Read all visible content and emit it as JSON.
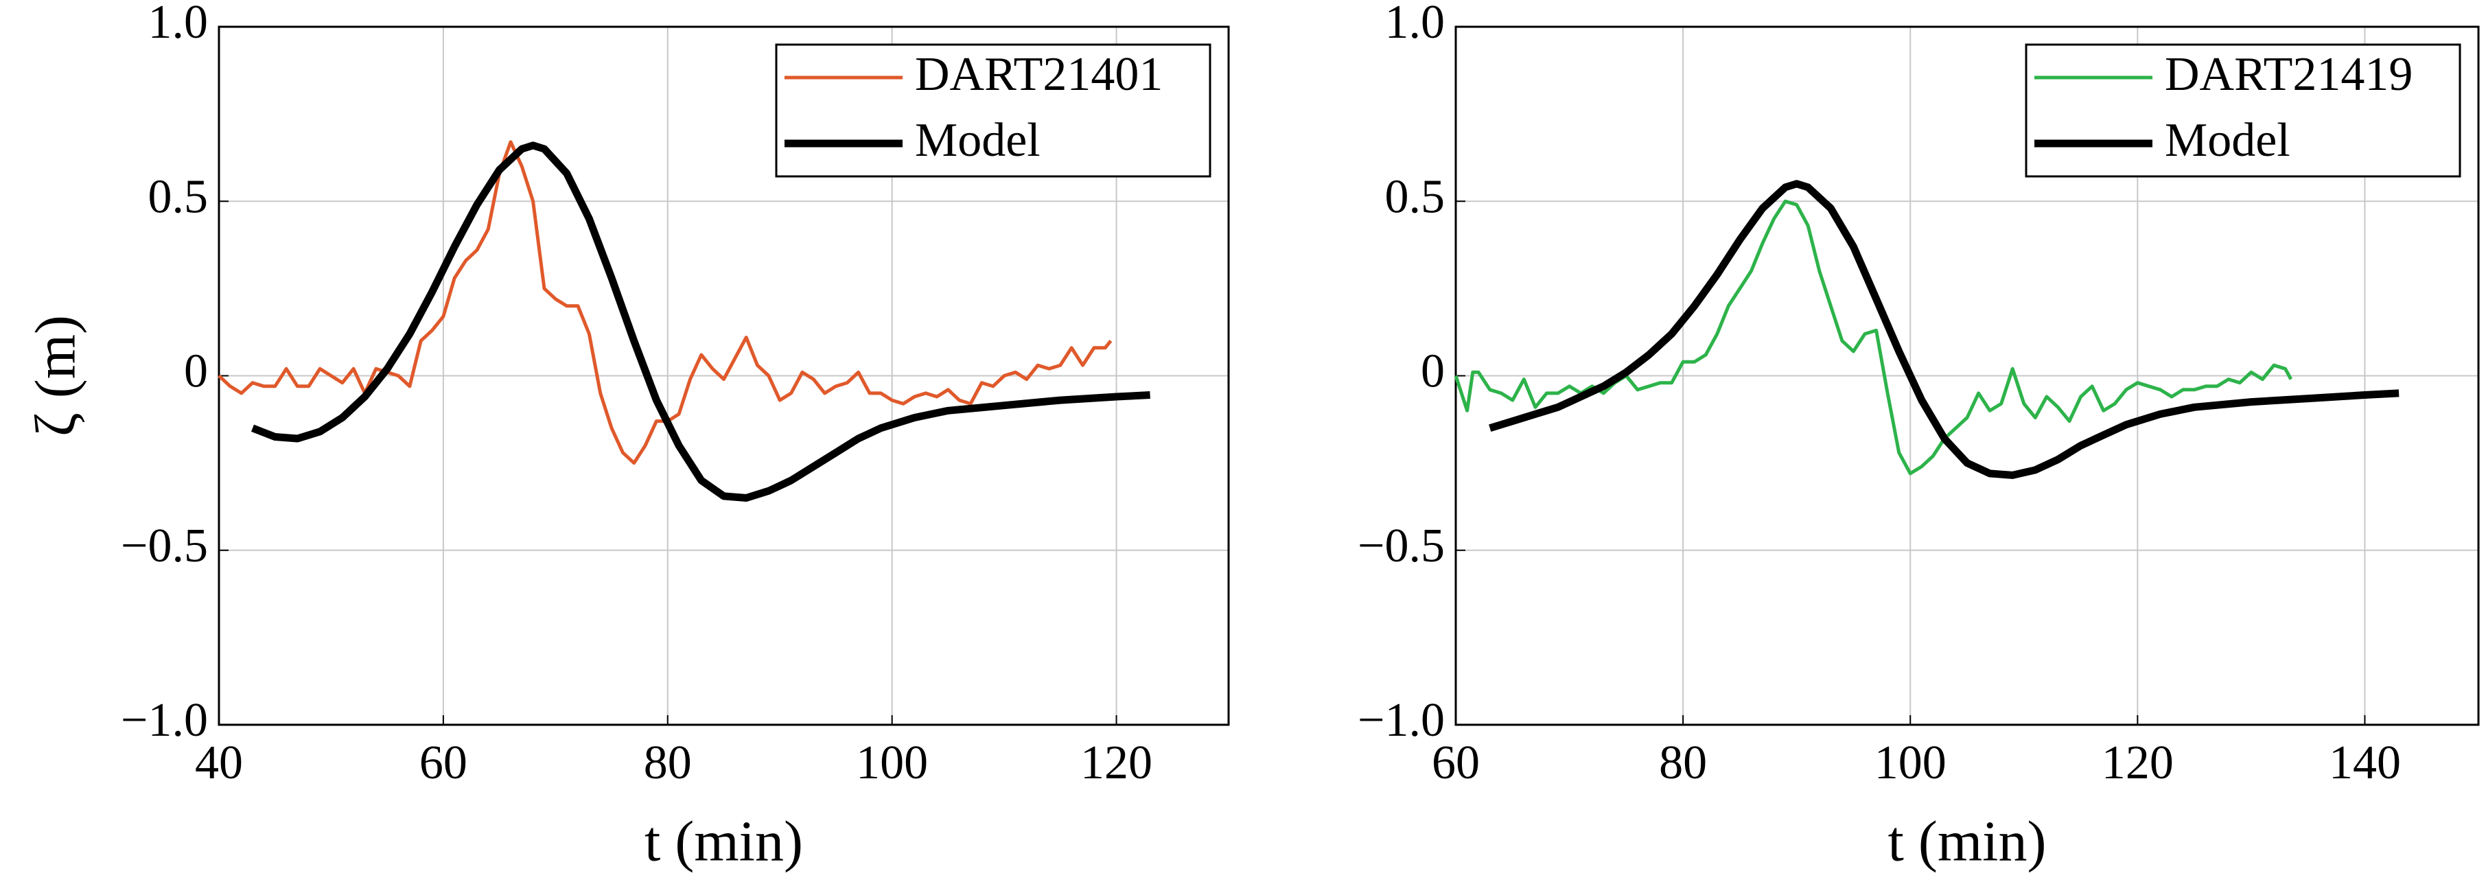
{
  "chart_data": [
    {
      "type": "line",
      "ylabel": "ζ (m)",
      "xlabel": "t (min)",
      "xlim": [
        40,
        130
      ],
      "ylim": [
        -1,
        1
      ],
      "xticks": [
        40,
        60,
        80,
        100,
        120
      ],
      "yticks": [
        {
          "value": -1,
          "label": "−1.0"
        },
        {
          "value": -0.5,
          "label": "−0.5"
        },
        0,
        0.5,
        {
          "value": 1,
          "label": "1.0"
        }
      ],
      "grid": true,
      "legend": "upper right",
      "series": [
        {
          "name": "DART21401",
          "color": "#e0592b",
          "width": "thin",
          "x": [
            40,
            41,
            42,
            43,
            44,
            45,
            46,
            47,
            48,
            49,
            50,
            51,
            52,
            53,
            54,
            55,
            56,
            57,
            58,
            59,
            60,
            61,
            62,
            63,
            64,
            65,
            66,
            67,
            68,
            69,
            70,
            71,
            72,
            73,
            74,
            75,
            76,
            77,
            78,
            79,
            80,
            81,
            82,
            83,
            84,
            85,
            86,
            87,
            88,
            89,
            90,
            91,
            92,
            93,
            94,
            95,
            96,
            97,
            98,
            99,
            100,
            101,
            102,
            103,
            104,
            105,
            106,
            107,
            108,
            109,
            110,
            111,
            112,
            113,
            114,
            115,
            116,
            117,
            118,
            119,
            119.5
          ],
          "values": [
            0,
            -0.03,
            -0.05,
            -0.02,
            -0.03,
            -0.03,
            0.02,
            -0.03,
            -0.03,
            0.02,
            0,
            -0.02,
            0.02,
            -0.05,
            0.02,
            0.01,
            0,
            -0.03,
            0.1,
            0.13,
            0.17,
            0.28,
            0.33,
            0.36,
            0.42,
            0.58,
            0.67,
            0.6,
            0.5,
            0.25,
            0.22,
            0.2,
            0.2,
            0.12,
            -0.05,
            -0.15,
            -0.22,
            -0.25,
            -0.2,
            -0.13,
            -0.13,
            -0.11,
            -0.01,
            0.06,
            0.02,
            -0.01,
            0.05,
            0.11,
            0.03,
            0,
            -0.07,
            -0.05,
            0.01,
            -0.01,
            -0.05,
            -0.03,
            -0.02,
            0.01,
            -0.05,
            -0.05,
            -0.07,
            -0.08,
            -0.06,
            -0.05,
            -0.06,
            -0.04,
            -0.07,
            -0.08,
            -0.02,
            -0.03,
            0,
            0.01,
            -0.01,
            0.03,
            0.02,
            0.03,
            0.08,
            0.03,
            0.08,
            0.08,
            0.1
          ]
        },
        {
          "name": "Model",
          "color": "#000000",
          "width": "thick",
          "x": [
            43,
            45,
            47,
            49,
            51,
            53,
            55,
            57,
            59,
            61,
            63,
            65,
            67,
            68,
            69,
            71,
            73,
            75,
            77,
            79,
            81,
            83,
            85,
            87,
            89,
            91,
            93,
            95,
            97,
            99,
            102,
            105,
            110,
            115,
            120,
            123
          ],
          "values": [
            -0.15,
            -0.175,
            -0.18,
            -0.16,
            -0.12,
            -0.06,
            0.02,
            0.12,
            0.24,
            0.37,
            0.49,
            0.59,
            0.65,
            0.66,
            0.65,
            0.58,
            0.45,
            0.28,
            0.1,
            -0.07,
            -0.2,
            -0.3,
            -0.345,
            -0.35,
            -0.33,
            -0.3,
            -0.26,
            -0.22,
            -0.18,
            -0.15,
            -0.12,
            -0.1,
            -0.085,
            -0.07,
            -0.06,
            -0.055
          ]
        }
      ]
    },
    {
      "type": "line",
      "xlabel": "t (min)",
      "xlim": [
        60,
        150
      ],
      "ylim": [
        -1,
        1
      ],
      "xticks": [
        60,
        80,
        100,
        120,
        140
      ],
      "yticks": [
        {
          "value": -1,
          "label": "−1.0"
        },
        {
          "value": -0.5,
          "label": "−0.5"
        },
        0,
        0.5,
        {
          "value": 1,
          "label": "1.0"
        }
      ],
      "grid": true,
      "legend": "upper right",
      "series": [
        {
          "name": "DART21419",
          "color": "#2db34a",
          "width": "thin",
          "x": [
            60,
            61,
            61.5,
            62,
            63,
            64,
            65,
            66,
            67,
            68,
            69,
            70,
            71,
            72,
            73,
            74,
            75,
            76,
            77,
            78,
            79,
            80,
            81,
            82,
            83,
            84,
            85,
            86,
            87,
            88,
            89,
            90,
            91,
            92,
            93,
            94,
            95,
            96,
            97,
            98,
            99,
            100,
            101,
            102,
            103,
            104,
            105,
            106,
            107,
            108,
            109,
            110,
            111,
            112,
            113,
            114,
            115,
            116,
            117,
            118,
            119,
            120,
            121,
            122,
            123,
            124,
            125,
            126,
            127,
            128,
            129,
            130,
            131,
            132,
            133,
            133.5
          ],
          "values": [
            0,
            -0.1,
            0.01,
            0.01,
            -0.04,
            -0.05,
            -0.07,
            -0.01,
            -0.09,
            -0.05,
            -0.05,
            -0.03,
            -0.05,
            -0.03,
            -0.05,
            -0.02,
            0,
            -0.04,
            -0.03,
            -0.02,
            -0.02,
            0.04,
            0.04,
            0.06,
            0.12,
            0.2,
            0.25,
            0.3,
            0.38,
            0.45,
            0.5,
            0.49,
            0.43,
            0.3,
            0.2,
            0.1,
            0.07,
            0.12,
            0.13,
            -0.05,
            -0.22,
            -0.28,
            -0.26,
            -0.23,
            -0.18,
            -0.15,
            -0.12,
            -0.05,
            -0.1,
            -0.08,
            0.02,
            -0.08,
            -0.12,
            -0.06,
            -0.09,
            -0.13,
            -0.06,
            -0.03,
            -0.1,
            -0.08,
            -0.04,
            -0.02,
            -0.03,
            -0.04,
            -0.06,
            -0.04,
            -0.04,
            -0.03,
            -0.03,
            -0.01,
            -0.02,
            0.01,
            -0.01,
            0.03,
            0.02,
            -0.01
          ]
        },
        {
          "name": "Model",
          "color": "#000000",
          "width": "thick",
          "x": [
            63,
            65,
            67,
            69,
            71,
            73,
            75,
            77,
            79,
            81,
            83,
            85,
            87,
            89,
            90,
            91,
            93,
            95,
            97,
            99,
            101,
            103,
            105,
            107,
            109,
            111,
            113,
            115,
            117,
            119,
            122,
            125,
            130,
            135,
            140,
            143
          ],
          "values": [
            -0.15,
            -0.13,
            -0.11,
            -0.09,
            -0.06,
            -0.03,
            0.01,
            0.06,
            0.12,
            0.2,
            0.29,
            0.39,
            0.48,
            0.54,
            0.55,
            0.54,
            0.48,
            0.37,
            0.22,
            0.07,
            -0.07,
            -0.18,
            -0.25,
            -0.28,
            -0.285,
            -0.27,
            -0.24,
            -0.2,
            -0.17,
            -0.14,
            -0.11,
            -0.09,
            -0.075,
            -0.065,
            -0.055,
            -0.05
          ]
        }
      ]
    }
  ]
}
